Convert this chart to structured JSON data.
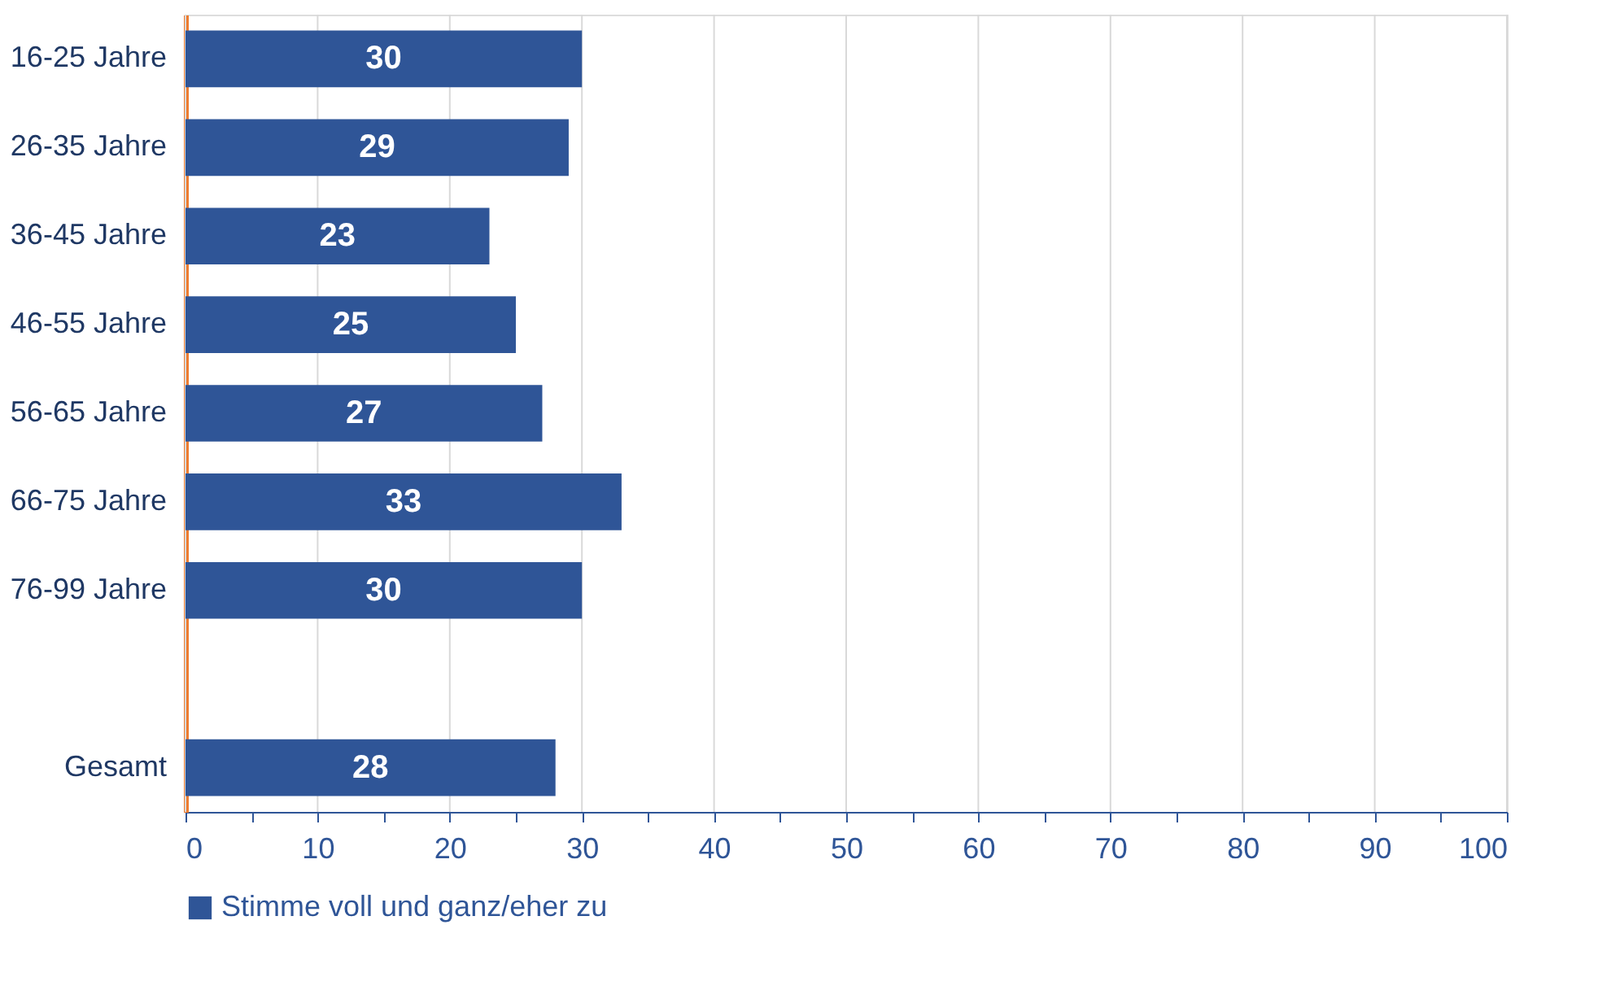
{
  "chart_data": {
    "type": "bar",
    "orientation": "horizontal",
    "categories": [
      "16-25 Jahre",
      "26-35 Jahre",
      "36-45 Jahre",
      "46-55 Jahre",
      "56-65 Jahre",
      "66-75 Jahre",
      "76-99 Jahre",
      null,
      "Gesamt"
    ],
    "series": [
      {
        "name": "Stimme voll und ganz/eher zu",
        "color": "#2f5597",
        "values": [
          30,
          29,
          23,
          25,
          27,
          33,
          30,
          null,
          28
        ]
      }
    ],
    "data_labels": true,
    "xlim": [
      0,
      100
    ],
    "xticks": [
      0,
      {
        "value": 5,
        "label": null
      },
      10,
      {
        "value": 15,
        "label": null
      },
      20,
      {
        "value": 25,
        "label": null
      },
      30,
      {
        "value": 35,
        "label": null
      },
      40,
      {
        "value": 45,
        "label": null
      },
      50,
      {
        "value": 55,
        "label": null
      },
      60,
      {
        "value": 65,
        "label": null
      },
      70,
      {
        "value": 75,
        "label": null
      },
      80,
      {
        "value": 85,
        "label": null
      },
      90,
      {
        "value": 95,
        "label": null
      },
      100
    ],
    "grid": "x",
    "legend": "bottom"
  }
}
